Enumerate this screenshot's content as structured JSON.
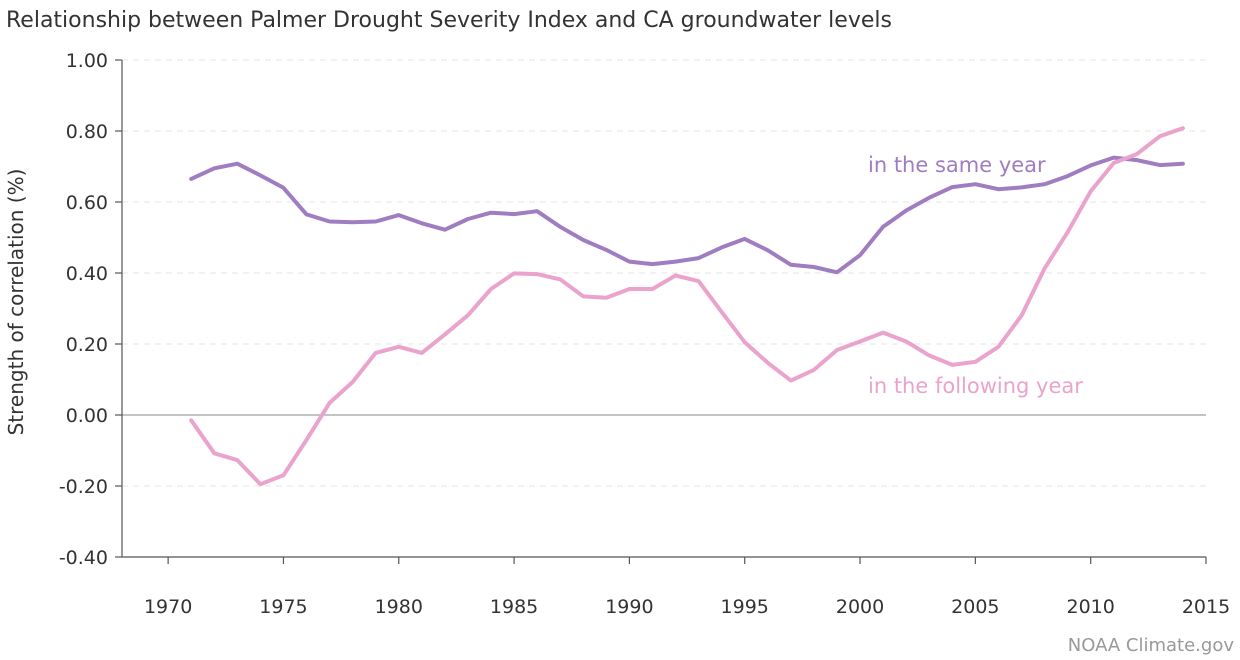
{
  "chart_data": {
    "type": "line",
    "title": "Relationship between Palmer Drought Severity Index and CA groundwater levels",
    "ylabel": "Strength of correlation (%)",
    "xlabel": "",
    "xlim": [
      1968,
      2015
    ],
    "ylim": [
      -0.4,
      1.0
    ],
    "grid": true,
    "x_ticks": [
      "1970",
      "1975",
      "1980",
      "1985",
      "1990",
      "1995",
      "2000",
      "2005",
      "2010",
      "2015"
    ],
    "y_ticks": [
      "1.00",
      "0.80",
      "0.60",
      "0.40",
      "0.20",
      "0.00",
      "-0.20",
      "-0.40"
    ],
    "x": [
      1971,
      1972,
      1973,
      1974,
      1975,
      1976,
      1977,
      1978,
      1979,
      1980,
      1981,
      1982,
      1983,
      1984,
      1985,
      1986,
      1987,
      1988,
      1989,
      1990,
      1991,
      1992,
      1993,
      1994,
      1995,
      1996,
      1997,
      1998,
      1999,
      2000,
      2001,
      2002,
      2003,
      2004,
      2005,
      2006,
      2007,
      2008,
      2009,
      2010,
      2011,
      2012,
      2013,
      2014
    ],
    "series": [
      {
        "name": "in the same year",
        "color": "#a07cc0",
        "values": [
          0.665,
          0.695,
          0.708,
          0.675,
          0.64,
          0.565,
          0.545,
          0.543,
          0.545,
          0.563,
          0.54,
          0.522,
          0.552,
          0.57,
          0.566,
          0.574,
          0.53,
          0.493,
          0.465,
          0.432,
          0.425,
          0.432,
          0.442,
          0.472,
          0.496,
          0.464,
          0.423,
          0.417,
          0.402,
          0.45,
          0.53,
          0.576,
          0.612,
          0.642,
          0.65,
          0.636,
          0.641,
          0.65,
          0.673,
          0.703,
          0.725,
          0.718,
          0.704,
          0.708
        ]
      },
      {
        "name": "in the following year",
        "color": "#e9a3cc",
        "values": [
          -0.015,
          -0.108,
          -0.127,
          -0.195,
          -0.17,
          -0.07,
          0.034,
          0.093,
          0.175,
          0.192,
          0.175,
          0.227,
          0.281,
          0.355,
          0.399,
          0.397,
          0.382,
          0.334,
          0.33,
          0.355,
          0.355,
          0.393,
          0.377,
          0.29,
          0.205,
          0.147,
          0.097,
          0.127,
          0.183,
          0.207,
          0.232,
          0.207,
          0.168,
          0.141,
          0.15,
          0.192,
          0.28,
          0.413,
          0.515,
          0.63,
          0.71,
          0.735,
          0.785,
          0.808
        ]
      }
    ]
  },
  "credit": "NOAA Climate.gov"
}
